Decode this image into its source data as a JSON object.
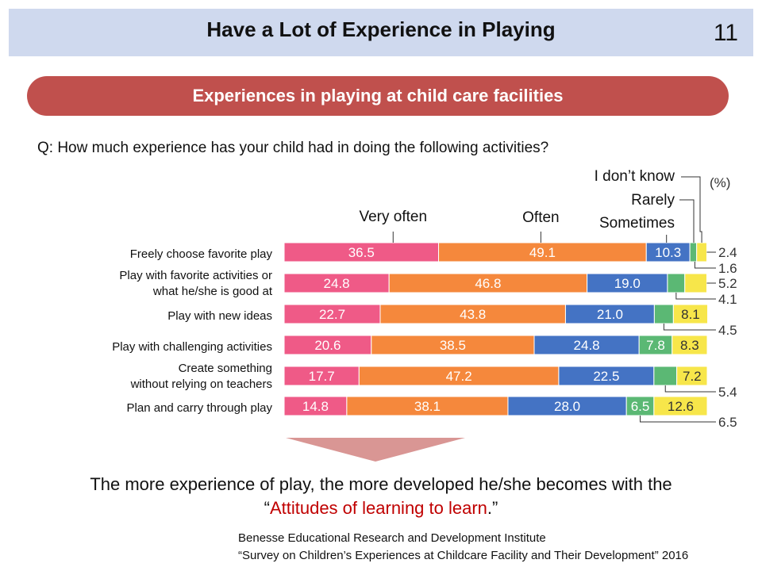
{
  "slide": {
    "title": "Have a Lot of Experience in Playing",
    "page_number": "11"
  },
  "banner": {
    "label": "Experiences in playing at child care facilities"
  },
  "question": "Q: How much experience has your child had in doing the following activities?",
  "colors": {
    "very_often": "#ef5a87",
    "often": "#f5883c",
    "sometimes": "#4473c4",
    "rarely": "#5bb874",
    "dont_know": "#f7e64a"
  },
  "chart_data": {
    "type": "bar",
    "orientation": "horizontal",
    "stacked": true,
    "unit": "(%)",
    "categories": [
      [
        "Freely choose favorite play"
      ],
      [
        "Play with favorite activities or",
        "what he/she is good at"
      ],
      [
        "Play with new ideas"
      ],
      [
        "Play with challenging activities"
      ],
      [
        "Create something",
        "without relying on teachers"
      ],
      [
        "Plan and carry through play"
      ]
    ],
    "series": [
      {
        "name": "Very often",
        "values": [
          36.5,
          24.8,
          22.7,
          20.6,
          17.7,
          14.8
        ]
      },
      {
        "name": "Often",
        "values": [
          49.1,
          46.8,
          43.8,
          38.5,
          47.2,
          38.1
        ]
      },
      {
        "name": "Sometimes",
        "values": [
          10.3,
          19.0,
          21.0,
          24.8,
          22.5,
          28.0
        ]
      },
      {
        "name": "Rarely",
        "values": [
          1.6,
          4.1,
          4.5,
          7.8,
          5.4,
          6.5
        ]
      },
      {
        "name": "I don’t know",
        "values": [
          2.4,
          5.2,
          8.1,
          8.3,
          7.2,
          12.6
        ]
      }
    ],
    "data_labels": [
      [
        "36.5",
        "49.1",
        "10.3",
        "",
        "2.4"
      ],
      [
        "24.8",
        "46.8",
        "19.0",
        "4.1",
        "5.2"
      ],
      [
        "22.7",
        "43.8",
        "21.0",
        "4.5",
        "8.1"
      ],
      [
        "20.6",
        "38.5",
        "24.8",
        "7.8",
        "8.3"
      ],
      [
        "17.7",
        "47.2",
        "22.5",
        "5.4",
        "7.2"
      ],
      [
        "14.8",
        "38.1",
        "28.0",
        "6.5",
        "12.6"
      ]
    ],
    "extra_labels": [
      "1.6"
    ],
    "xlim": [
      0,
      100
    ]
  },
  "conclusion": {
    "line1": "The more experience of play, the more developed he/she becomes with the",
    "quote_open": "“",
    "highlight": "Attitudes of learning to learn",
    "quote_close": ".”"
  },
  "source": {
    "line1": "Benesse Educational Research and Development Institute",
    "line2": "“Survey on Children’s Experiences at Childcare Facility and Their Development” 2016"
  }
}
